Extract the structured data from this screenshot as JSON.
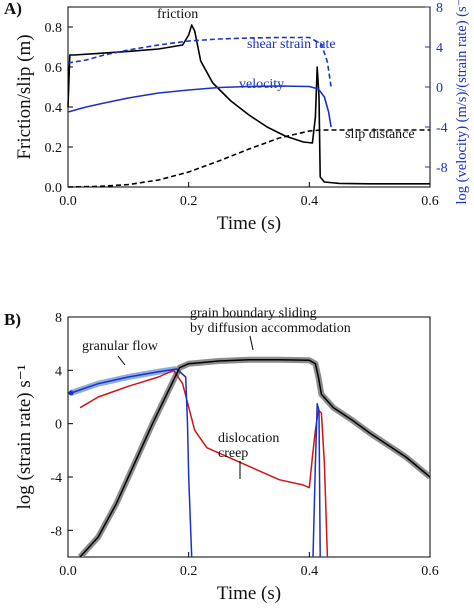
{
  "chart_data": [
    {
      "type": "line",
      "panel_label": "A)",
      "xlabel": "Time (s)",
      "ylabel": "Friction/slip (m)",
      "ylabel_right": "log (velocity) (m/s)/(strain rate) (s⁻¹)",
      "xlim": [
        0,
        0.6
      ],
      "ylim": [
        0,
        0.9
      ],
      "ylim_right": [
        -10,
        8
      ],
      "x_ticks": [
        "0.0",
        "0.2",
        "0.4",
        "0.6"
      ],
      "y_ticks": [
        "0.0",
        "0.2",
        "0.4",
        "0.6",
        "0.8"
      ],
      "y_ticks_right": [
        "8",
        "4",
        "0",
        "-4",
        "-8"
      ],
      "series": [
        {
          "name": "friction",
          "axis": "left",
          "color": "#000000",
          "style": "solid",
          "points": [
            [
              0.0,
              0.4
            ],
            [
              0.003,
              0.66
            ],
            [
              0.01,
              0.66
            ],
            [
              0.05,
              0.668
            ],
            [
              0.1,
              0.678
            ],
            [
              0.15,
              0.69
            ],
            [
              0.19,
              0.71
            ],
            [
              0.2,
              0.76
            ],
            [
              0.205,
              0.81
            ],
            [
              0.21,
              0.78
            ],
            [
              0.22,
              0.63
            ],
            [
              0.24,
              0.52
            ],
            [
              0.27,
              0.43
            ],
            [
              0.3,
              0.36
            ],
            [
              0.33,
              0.3
            ],
            [
              0.36,
              0.255
            ],
            [
              0.39,
              0.225
            ],
            [
              0.405,
              0.22
            ],
            [
              0.41,
              0.35
            ],
            [
              0.413,
              0.6
            ],
            [
              0.416,
              0.45
            ],
            [
              0.418,
              0.05
            ],
            [
              0.425,
              0.025
            ],
            [
              0.45,
              0.018
            ],
            [
              0.5,
              0.016
            ],
            [
              0.6,
              0.016
            ]
          ]
        },
        {
          "name": "shear strain rate",
          "axis": "right",
          "color": "#1a32c8",
          "style": "dashed",
          "points": [
            [
              0.0,
              2.4
            ],
            [
              0.03,
              2.7
            ],
            [
              0.06,
              3.2
            ],
            [
              0.1,
              3.7
            ],
            [
              0.15,
              4.2
            ],
            [
              0.2,
              4.6
            ],
            [
              0.25,
              4.8
            ],
            [
              0.3,
              4.9
            ],
            [
              0.35,
              4.95
            ],
            [
              0.4,
              4.95
            ],
            [
              0.42,
              4.3
            ],
            [
              0.43,
              2.5
            ],
            [
              0.436,
              0.0
            ]
          ]
        },
        {
          "name": "velocity",
          "axis": "right",
          "color": "#1a32c8",
          "style": "solid",
          "points": [
            [
              0.0,
              -2.5
            ],
            [
              0.03,
              -2.0
            ],
            [
              0.06,
              -1.6
            ],
            [
              0.1,
              -1.1
            ],
            [
              0.15,
              -0.6
            ],
            [
              0.2,
              -0.3
            ],
            [
              0.25,
              -0.05
            ],
            [
              0.3,
              0.05
            ],
            [
              0.35,
              0.1
            ],
            [
              0.4,
              0.05
            ],
            [
              0.415,
              -0.2
            ],
            [
              0.425,
              -1.0
            ],
            [
              0.432,
              -2.5
            ],
            [
              0.436,
              -4.0
            ]
          ]
        },
        {
          "name": "slip distance",
          "axis": "left",
          "color": "#000000",
          "style": "dashed",
          "points": [
            [
              0.0,
              0.0
            ],
            [
              0.05,
              0.003
            ],
            [
              0.1,
              0.012
            ],
            [
              0.15,
              0.035
            ],
            [
              0.2,
              0.075
            ],
            [
              0.25,
              0.13
            ],
            [
              0.3,
              0.19
            ],
            [
              0.35,
              0.245
            ],
            [
              0.4,
              0.28
            ],
            [
              0.42,
              0.285
            ],
            [
              0.6,
              0.285
            ]
          ]
        }
      ]
    },
    {
      "type": "line",
      "panel_label": "B)",
      "xlabel": "Time (s)",
      "ylabel": "log (strain rate) s⁻¹",
      "xlim": [
        0,
        0.6
      ],
      "ylim": [
        -10,
        8
      ],
      "x_ticks": [
        "0.0",
        "0.2",
        "0.4",
        "0.6"
      ],
      "y_ticks": [
        "8",
        "4",
        "0",
        "-4",
        "-8"
      ],
      "series": [
        {
          "name": "granular flow",
          "color": "#1a32c8",
          "points": [
            [
              0.005,
              2.3
            ],
            [
              0.05,
              3.0
            ],
            [
              0.1,
              3.5
            ],
            [
              0.15,
              3.9
            ],
            [
              0.18,
              4.1
            ],
            [
              0.195,
              3.5
            ],
            [
              0.198,
              0.0
            ],
            [
              0.2,
              -4.0
            ],
            [
              0.205,
              -10.0
            ]
          ]
        },
        {
          "name": "grain boundary sliding by diffusion accommodation",
          "color": "#000000",
          "points": [
            [
              0.02,
              -10.0
            ],
            [
              0.05,
              -8.5
            ],
            [
              0.08,
              -6.0
            ],
            [
              0.11,
              -3.0
            ],
            [
              0.14,
              0.0
            ],
            [
              0.17,
              2.8
            ],
            [
              0.185,
              4.2
            ],
            [
              0.2,
              4.5
            ],
            [
              0.25,
              4.7
            ],
            [
              0.3,
              4.8
            ],
            [
              0.35,
              4.8
            ],
            [
              0.4,
              4.75
            ],
            [
              0.41,
              4.5
            ],
            [
              0.415,
              3.5
            ],
            [
              0.42,
              2.2
            ],
            [
              0.44,
              1.2
            ],
            [
              0.47,
              0.3
            ],
            [
              0.5,
              -0.7
            ],
            [
              0.53,
              -1.6
            ],
            [
              0.56,
              -2.5
            ],
            [
              0.6,
              -4.0
            ]
          ]
        },
        {
          "name": "dislocation creep",
          "color": "#d21414",
          "points": [
            [
              0.02,
              1.2
            ],
            [
              0.05,
              2.0
            ],
            [
              0.1,
              2.8
            ],
            [
              0.15,
              3.5
            ],
            [
              0.175,
              4.0
            ],
            [
              0.19,
              3.0
            ],
            [
              0.21,
              -0.5
            ],
            [
              0.23,
              -1.8
            ],
            [
              0.27,
              -2.6
            ],
            [
              0.3,
              -3.2
            ],
            [
              0.35,
              -4.2
            ],
            [
              0.39,
              -4.6
            ],
            [
              0.4,
              -4.8
            ],
            [
              0.405,
              -2.5
            ],
            [
              0.41,
              -0.5
            ],
            [
              0.415,
              1.0
            ],
            [
              0.42,
              0.8
            ],
            [
              0.425,
              -3.0
            ],
            [
              0.43,
              -10.0
            ]
          ]
        },
        {
          "name": "blue spike",
          "color": "#1a32c8",
          "points": [
            [
              0.406,
              -10.0
            ],
            [
              0.41,
              -3.0
            ],
            [
              0.413,
              1.5
            ],
            [
              0.416,
              1.0
            ],
            [
              0.418,
              -10.0
            ]
          ]
        }
      ],
      "annotations": [
        {
          "text": "granular flow",
          "target": [
            0.09,
            3.3
          ]
        },
        {
          "text": "grain boundary sliding",
          "text2": "by diffusion accommodation",
          "target": [
            0.26,
            4.8
          ]
        },
        {
          "text": "dislocation",
          "text2": "creep",
          "target": [
            0.27,
            -2.7
          ]
        }
      ]
    }
  ],
  "colors": {
    "blue": "#1a32c8",
    "red": "#d21414",
    "black": "#000000",
    "gray": "#8c8c8c"
  }
}
